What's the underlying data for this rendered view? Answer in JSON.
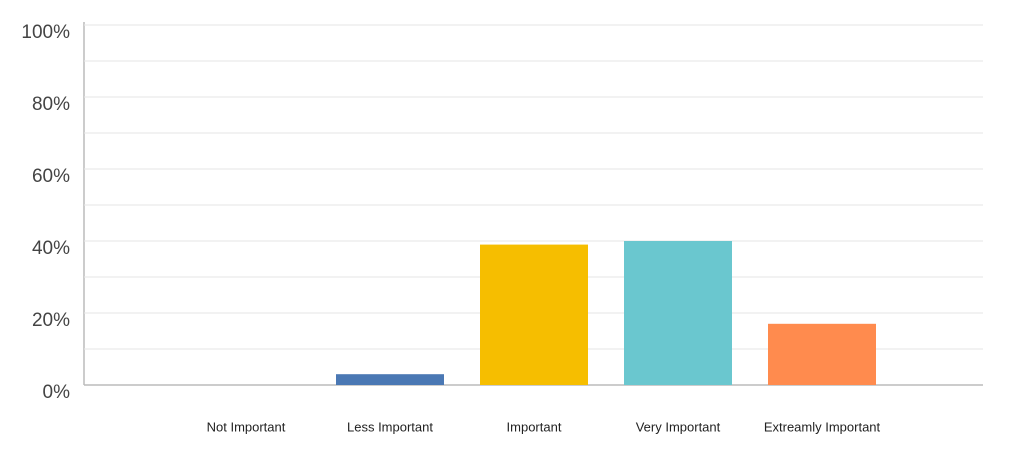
{
  "chart_data": {
    "type": "bar",
    "categories": [
      "Not Important",
      "Less Important",
      "Important",
      "Very Important",
      "Extreamly Important"
    ],
    "values": [
      0,
      3,
      39,
      40,
      17
    ],
    "colors": [
      "#4a78b4",
      "#4a78b4",
      "#f6be00",
      "#6ac7cf",
      "#ff8b4e"
    ],
    "ylim": [
      0,
      100
    ],
    "yticks": [
      {
        "value": 0,
        "label": "0%"
      },
      {
        "value": 20,
        "label": "20%"
      },
      {
        "value": 40,
        "label": "40%"
      },
      {
        "value": 60,
        "label": "60%"
      },
      {
        "value": 80,
        "label": "80%"
      },
      {
        "value": 100,
        "label": "100%"
      }
    ],
    "minor_gridlines": [
      10,
      30,
      50,
      70,
      90
    ],
    "grid": true
  }
}
